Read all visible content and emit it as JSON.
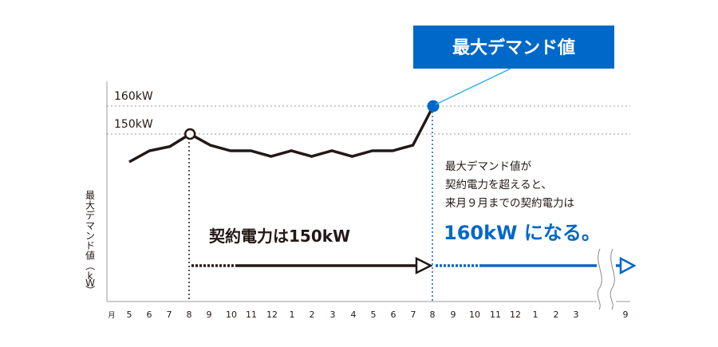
{
  "chart_data": {
    "type": "line",
    "ylabel": "最大デマンド値（kW）",
    "x_tick_labels": [
      "月",
      "5",
      "6",
      "7",
      "8",
      "9",
      "10",
      "11",
      "12",
      "1",
      "2",
      "3",
      "4",
      "5",
      "6",
      "7",
      "8",
      "9",
      "10",
      "11",
      "12",
      "1",
      "2",
      "3",
      "9"
    ],
    "series": [
      {
        "values": [
          140,
          144,
          145.5,
          150,
          146,
          144,
          144,
          142,
          144,
          142,
          144,
          142,
          144,
          144,
          146,
          160
        ]
      }
    ],
    "reference_lines": [
      {
        "label": "160kW",
        "value": 160
      },
      {
        "label": "150kW",
        "value": 150
      }
    ],
    "callout": {
      "text": "最大デマンド値"
    },
    "arrow1_label": "契約電力は150kW",
    "note_lines": [
      "最大デマンド値が",
      "契約電力を超えると、",
      "来月９月までの契約電力は"
    ],
    "note_highlight": "160kW になる。"
  },
  "colors": {
    "line": "#231815",
    "blue": "#0068c8",
    "light_blue": "#35b3e4",
    "grid": "#9a9a9a",
    "text": "#231815"
  }
}
